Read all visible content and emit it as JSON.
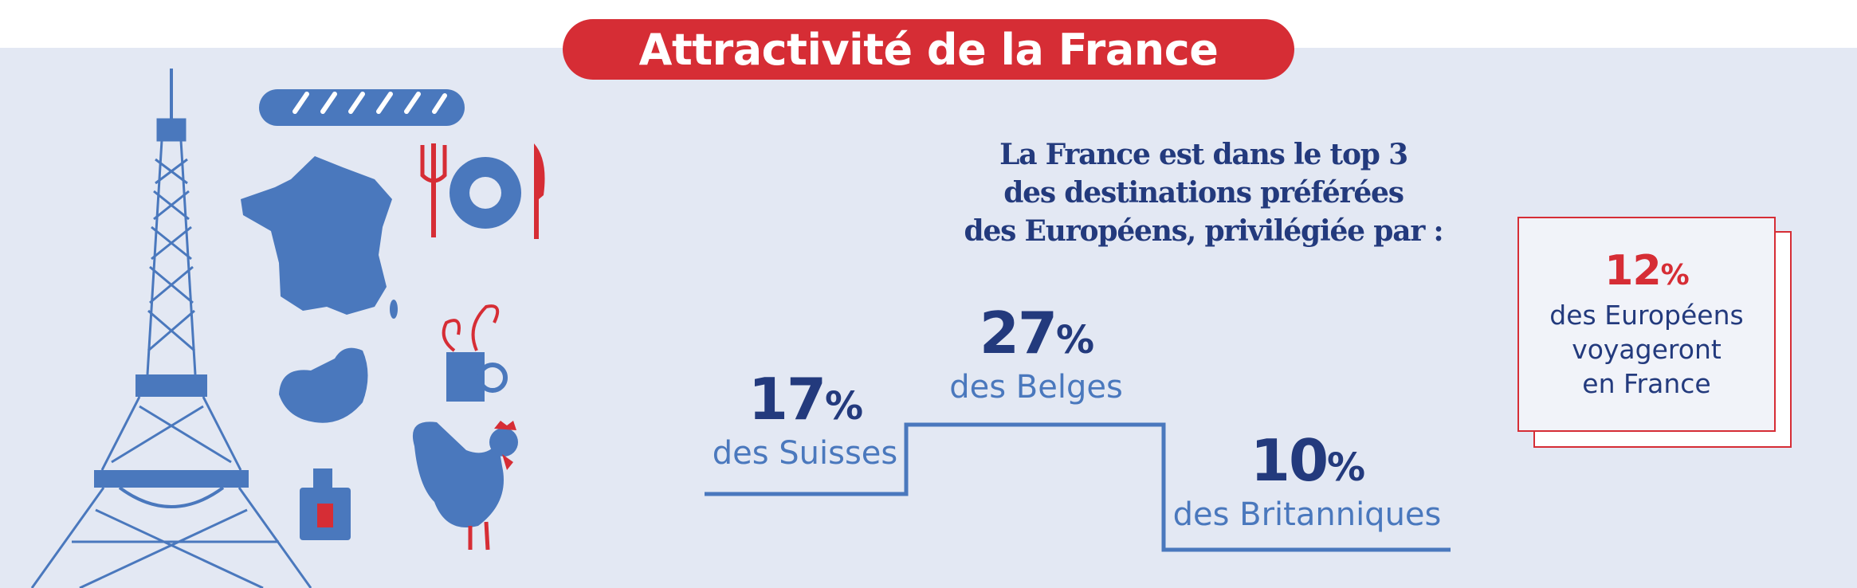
{
  "header": {
    "title": "Attractivité de la France"
  },
  "headline": {
    "line1": "La France est dans le top 3",
    "line2": "des destinations préférées",
    "line3": "des Européens, privilégiée par :"
  },
  "stats": [
    {
      "value": "17",
      "unit": "%",
      "label": "des Suisses"
    },
    {
      "value": "27",
      "unit": "%",
      "label": "des Belges"
    },
    {
      "value": "10",
      "unit": "%",
      "label": "des Britanniques"
    }
  ],
  "highlight": {
    "value": "12",
    "unit": "%",
    "line1": "des Européens",
    "line2": "voyageront",
    "line3": "en France"
  },
  "icons": [
    "eiffel-tower-icon",
    "baguette-icon",
    "france-map-icon",
    "plate-cutlery-icon",
    "croissant-icon",
    "coffee-mug-icon",
    "perfume-bottle-icon",
    "rooster-icon"
  ],
  "colors": {
    "brand_red": "#d62d35",
    "navy": "#233a7d",
    "blue": "#4a78bd",
    "background": "#e3e8f3"
  }
}
